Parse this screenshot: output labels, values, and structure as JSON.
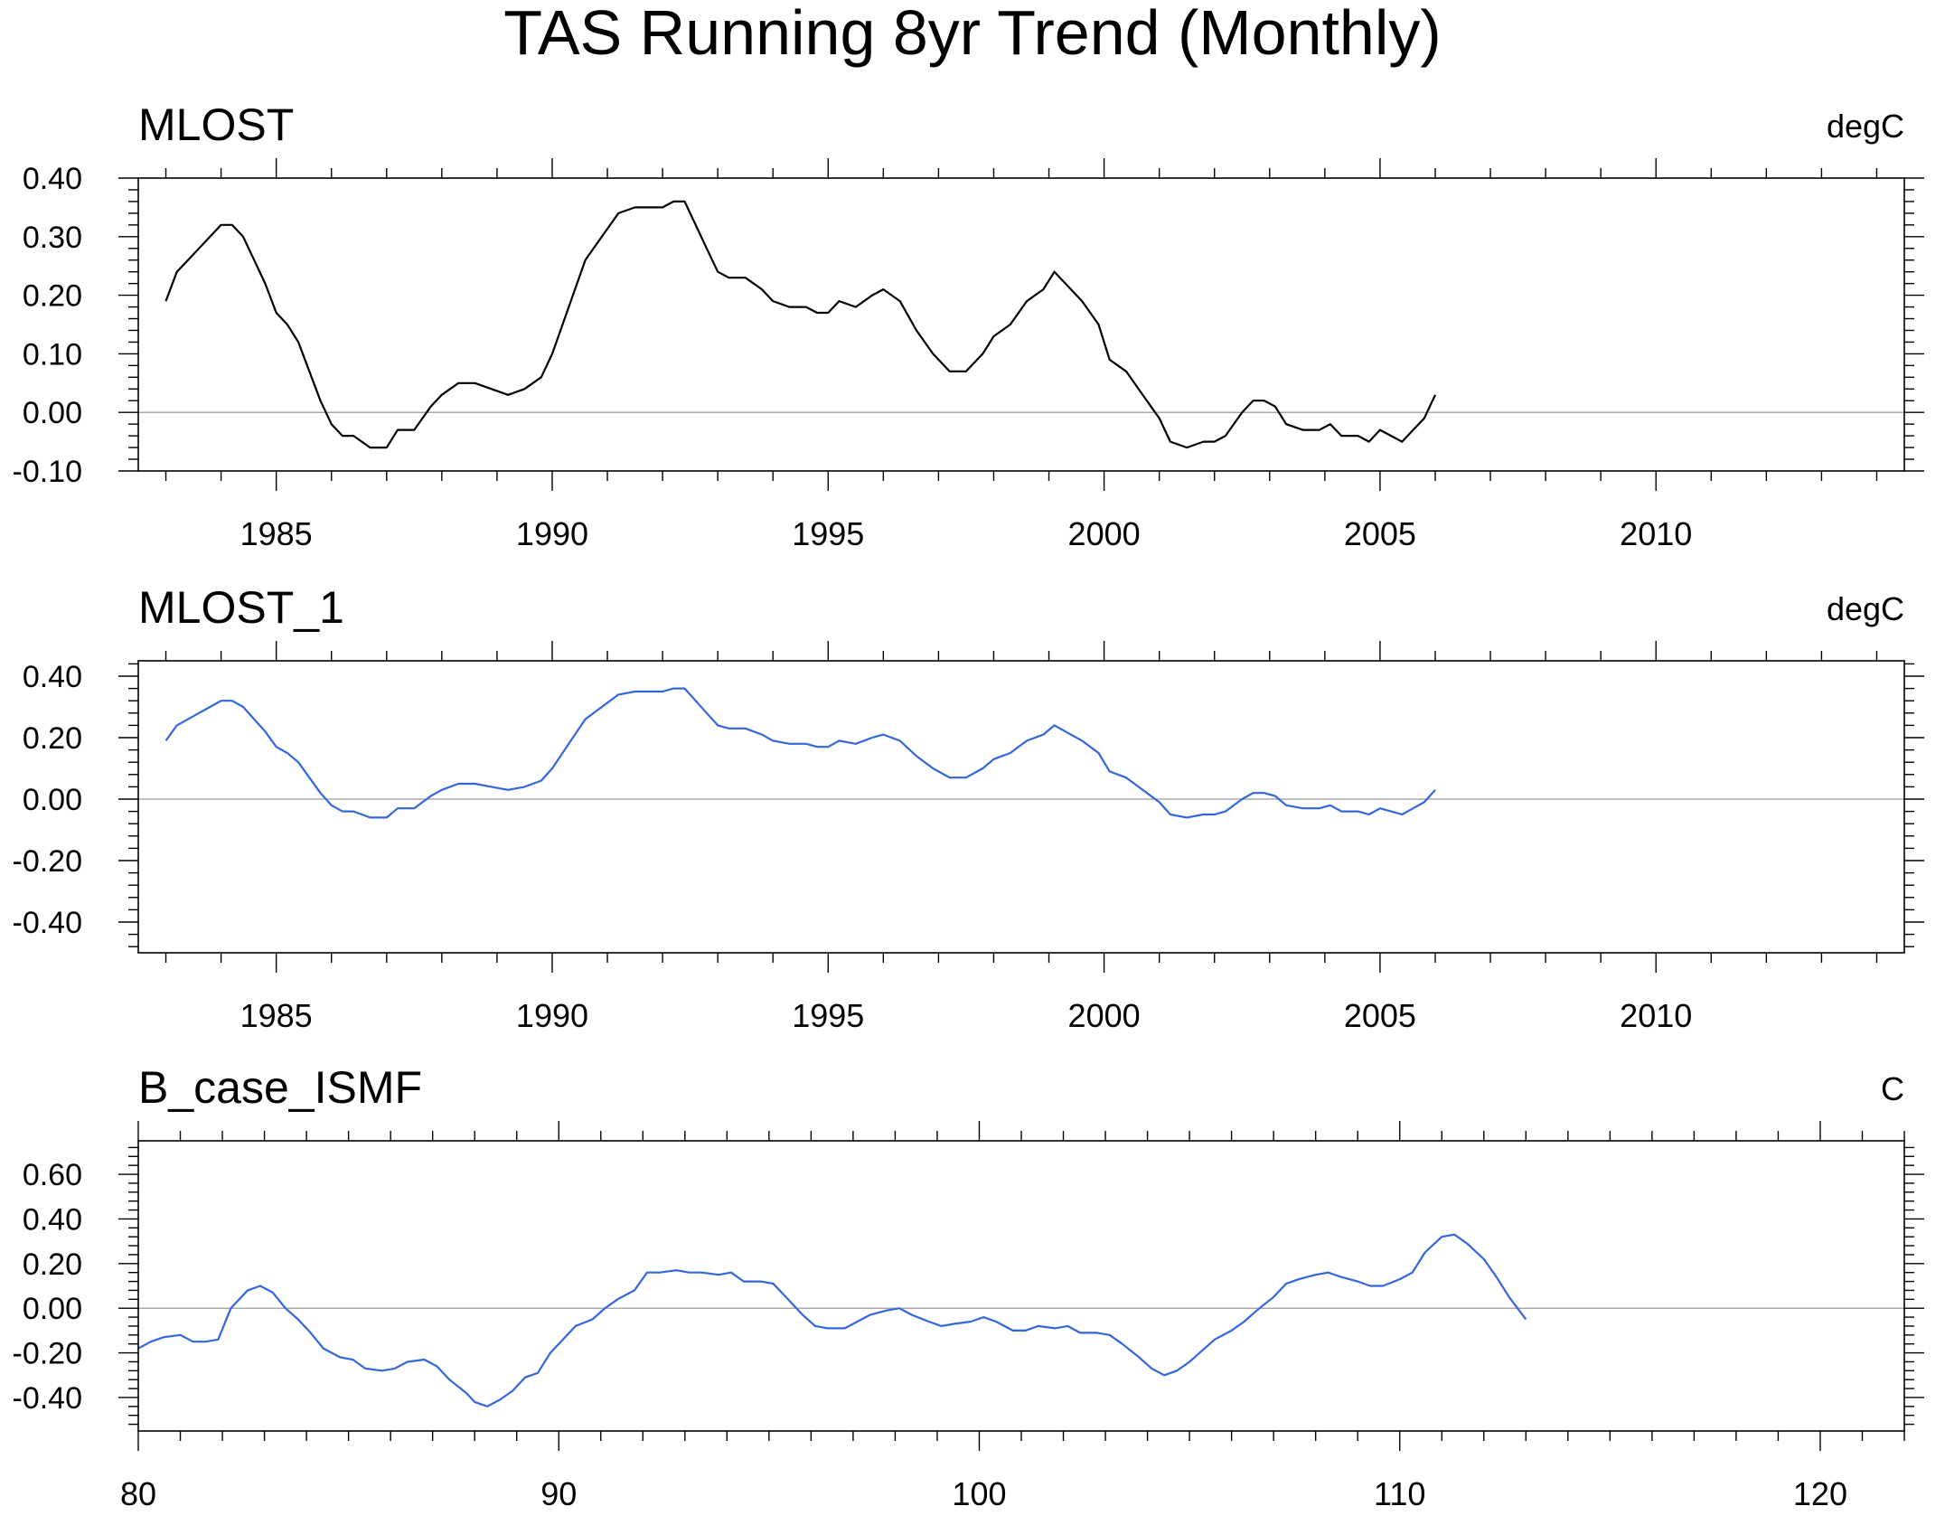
{
  "figure": {
    "title": "TAS Running 8yr Trend (Monthly)"
  },
  "colors": {
    "black_series": "#000000",
    "blue_series": "#3366dd",
    "zero_line": "#aaaaaa",
    "frame": "#000000"
  },
  "chart_data": [
    {
      "type": "line",
      "title": "MLOST",
      "units": "degC",
      "line_color": "#000000",
      "xlim": [
        1982.5,
        2014.5
      ],
      "ylim": [
        -0.1,
        0.4
      ],
      "x_ticks": [
        1985,
        1990,
        1995,
        2000,
        2005,
        2010
      ],
      "x_tick_labels": [
        "1985",
        "1990",
        "1995",
        "2000",
        "2005",
        "2010"
      ],
      "y_ticks": [
        -0.1,
        0.0,
        0.1,
        0.2,
        0.3,
        0.4
      ],
      "y_tick_labels": [
        "-0.10",
        "0.00",
        "0.10",
        "0.20",
        "0.30",
        "0.40"
      ],
      "zero_line": true,
      "series": [
        {
          "x": [
            1983.0,
            1983.2,
            1983.5,
            1983.8,
            1984.0,
            1984.2,
            1984.4,
            1984.6,
            1984.8,
            1985.0,
            1985.2,
            1985.4,
            1985.6,
            1985.8,
            1986.0,
            1986.2,
            1986.4,
            1986.7,
            1987.0,
            1987.2,
            1987.5,
            1987.8,
            1988.0,
            1988.3,
            1988.6,
            1988.9,
            1989.2,
            1989.5,
            1989.8,
            1990.0,
            1990.3,
            1990.6,
            1990.9,
            1991.2,
            1991.5,
            1991.8,
            1992.0,
            1992.2,
            1992.4,
            1992.6,
            1992.8,
            1993.0,
            1993.2,
            1993.5,
            1993.8,
            1994.0,
            1994.3,
            1994.6,
            1994.8,
            1995.0,
            1995.2,
            1995.5,
            1995.8,
            1996.0,
            1996.3,
            1996.6,
            1996.9,
            1997.2,
            1997.5,
            1997.8,
            1998.0,
            1998.3,
            1998.6,
            1998.9,
            1999.1,
            1999.3,
            1999.6,
            1999.9,
            2000.1,
            2000.4,
            2000.7,
            2001.0,
            2001.2,
            2001.5,
            2001.8,
            2002.0,
            2002.2,
            2002.5,
            2002.7,
            2002.9,
            2003.1,
            2003.3,
            2003.6,
            2003.9,
            2004.1,
            2004.3,
            2004.6,
            2004.8,
            2005.0,
            2005.2,
            2005.4,
            2005.6,
            2005.8,
            2006.0
          ],
          "y": [
            0.19,
            0.24,
            0.27,
            0.3,
            0.32,
            0.32,
            0.3,
            0.26,
            0.22,
            0.17,
            0.15,
            0.12,
            0.07,
            0.02,
            -0.02,
            -0.04,
            -0.04,
            -0.06,
            -0.06,
            -0.03,
            -0.03,
            0.01,
            0.03,
            0.05,
            0.05,
            0.04,
            0.03,
            0.04,
            0.06,
            0.1,
            0.18,
            0.26,
            0.3,
            0.34,
            0.35,
            0.35,
            0.35,
            0.36,
            0.36,
            0.32,
            0.28,
            0.24,
            0.23,
            0.23,
            0.21,
            0.19,
            0.18,
            0.18,
            0.17,
            0.17,
            0.19,
            0.18,
            0.2,
            0.21,
            0.19,
            0.14,
            0.1,
            0.07,
            0.07,
            0.1,
            0.13,
            0.15,
            0.19,
            0.21,
            0.24,
            0.22,
            0.19,
            0.15,
            0.09,
            0.07,
            0.03,
            -0.01,
            -0.05,
            -0.06,
            -0.05,
            -0.05,
            -0.04,
            0.0,
            0.02,
            0.02,
            0.01,
            -0.02,
            -0.03,
            -0.03,
            -0.02,
            -0.04,
            -0.04,
            -0.05,
            -0.03,
            -0.04,
            -0.05,
            -0.03,
            -0.01,
            0.03
          ]
        }
      ]
    },
    {
      "type": "line",
      "title": "MLOST_1",
      "units": "degC",
      "line_color": "#3366dd",
      "xlim": [
        1982.5,
        2014.5
      ],
      "ylim": [
        -0.5,
        0.45
      ],
      "x_ticks": [
        1985,
        1990,
        1995,
        2000,
        2005,
        2010
      ],
      "x_tick_labels": [
        "1985",
        "1990",
        "1995",
        "2000",
        "2005",
        "2010"
      ],
      "y_ticks": [
        -0.4,
        -0.2,
        0.0,
        0.2,
        0.4
      ],
      "y_tick_labels": [
        "-0.40",
        "-0.20",
        "0.00",
        "0.20",
        "0.40"
      ],
      "zero_line": true,
      "series": [
        {
          "x": [
            1983.0,
            1983.2,
            1983.5,
            1983.8,
            1984.0,
            1984.2,
            1984.4,
            1984.6,
            1984.8,
            1985.0,
            1985.2,
            1985.4,
            1985.6,
            1985.8,
            1986.0,
            1986.2,
            1986.4,
            1986.7,
            1987.0,
            1987.2,
            1987.5,
            1987.8,
            1988.0,
            1988.3,
            1988.6,
            1988.9,
            1989.2,
            1989.5,
            1989.8,
            1990.0,
            1990.3,
            1990.6,
            1990.9,
            1991.2,
            1991.5,
            1991.8,
            1992.0,
            1992.2,
            1992.4,
            1992.6,
            1992.8,
            1993.0,
            1993.2,
            1993.5,
            1993.8,
            1994.0,
            1994.3,
            1994.6,
            1994.8,
            1995.0,
            1995.2,
            1995.5,
            1995.8,
            1996.0,
            1996.3,
            1996.6,
            1996.9,
            1997.2,
            1997.5,
            1997.8,
            1998.0,
            1998.3,
            1998.6,
            1998.9,
            1999.1,
            1999.3,
            1999.6,
            1999.9,
            2000.1,
            2000.4,
            2000.7,
            2001.0,
            2001.2,
            2001.5,
            2001.8,
            2002.0,
            2002.2,
            2002.5,
            2002.7,
            2002.9,
            2003.1,
            2003.3,
            2003.6,
            2003.9,
            2004.1,
            2004.3,
            2004.6,
            2004.8,
            2005.0,
            2005.2,
            2005.4,
            2005.6,
            2005.8,
            2006.0
          ],
          "y": [
            0.19,
            0.24,
            0.27,
            0.3,
            0.32,
            0.32,
            0.3,
            0.26,
            0.22,
            0.17,
            0.15,
            0.12,
            0.07,
            0.02,
            -0.02,
            -0.04,
            -0.04,
            -0.06,
            -0.06,
            -0.03,
            -0.03,
            0.01,
            0.03,
            0.05,
            0.05,
            0.04,
            0.03,
            0.04,
            0.06,
            0.1,
            0.18,
            0.26,
            0.3,
            0.34,
            0.35,
            0.35,
            0.35,
            0.36,
            0.36,
            0.32,
            0.28,
            0.24,
            0.23,
            0.23,
            0.21,
            0.19,
            0.18,
            0.18,
            0.17,
            0.17,
            0.19,
            0.18,
            0.2,
            0.21,
            0.19,
            0.14,
            0.1,
            0.07,
            0.07,
            0.1,
            0.13,
            0.15,
            0.19,
            0.21,
            0.24,
            0.22,
            0.19,
            0.15,
            0.09,
            0.07,
            0.03,
            -0.01,
            -0.05,
            -0.06,
            -0.05,
            -0.05,
            -0.04,
            0.0,
            0.02,
            0.02,
            0.01,
            -0.02,
            -0.03,
            -0.03,
            -0.02,
            -0.04,
            -0.04,
            -0.05,
            -0.03,
            -0.04,
            -0.05,
            -0.03,
            -0.01,
            0.03
          ]
        }
      ]
    },
    {
      "type": "line",
      "title": "B_case_ISMF",
      "units": "C",
      "line_color": "#3366dd",
      "xlim": [
        80,
        122
      ],
      "ylim": [
        -0.55,
        0.75
      ],
      "x_ticks": [
        80,
        90,
        100,
        110,
        120
      ],
      "x_tick_labels": [
        "80",
        "90",
        "100",
        "110",
        "120"
      ],
      "y_ticks": [
        -0.4,
        -0.2,
        0.0,
        0.2,
        0.4,
        0.6
      ],
      "y_tick_labels": [
        "-0.40",
        "-0.20",
        "0.00",
        "0.20",
        "0.40",
        "0.60"
      ],
      "zero_line": true,
      "series": [
        {
          "x": [
            80.0,
            80.3,
            80.6,
            81.0,
            81.3,
            81.6,
            81.9,
            82.2,
            82.6,
            82.9,
            83.2,
            83.5,
            83.8,
            84.1,
            84.4,
            84.8,
            85.1,
            85.4,
            85.8,
            86.1,
            86.4,
            86.8,
            87.1,
            87.4,
            87.8,
            88.0,
            88.3,
            88.6,
            88.9,
            89.2,
            89.5,
            89.8,
            90.1,
            90.4,
            90.8,
            91.1,
            91.4,
            91.8,
            92.1,
            92.4,
            92.8,
            93.1,
            93.4,
            93.8,
            94.1,
            94.4,
            94.8,
            95.1,
            95.4,
            95.8,
            96.1,
            96.4,
            96.8,
            97.1,
            97.4,
            97.8,
            98.1,
            98.4,
            98.8,
            99.1,
            99.4,
            99.8,
            100.1,
            100.4,
            100.8,
            101.1,
            101.4,
            101.8,
            102.1,
            102.4,
            102.8,
            103.1,
            103.4,
            103.8,
            104.1,
            104.4,
            104.7,
            105.0,
            105.3,
            105.6,
            106.0,
            106.3,
            106.6,
            107.0,
            107.3,
            107.6,
            108.0,
            108.3,
            108.6,
            109.0,
            109.3,
            109.6,
            110.0,
            110.3,
            110.6,
            111.0,
            111.3,
            111.6,
            112.0,
            112.3,
            112.6,
            113.0
          ],
          "y": [
            -0.18,
            -0.15,
            -0.13,
            -0.12,
            -0.15,
            -0.15,
            -0.14,
            0.0,
            0.08,
            0.1,
            0.07,
            0.0,
            -0.05,
            -0.11,
            -0.18,
            -0.22,
            -0.23,
            -0.27,
            -0.28,
            -0.27,
            -0.24,
            -0.23,
            -0.26,
            -0.32,
            -0.38,
            -0.42,
            -0.44,
            -0.41,
            -0.37,
            -0.31,
            -0.29,
            -0.2,
            -0.14,
            -0.08,
            -0.05,
            0.0,
            0.04,
            0.08,
            0.16,
            0.16,
            0.17,
            0.16,
            0.16,
            0.15,
            0.16,
            0.12,
            0.12,
            0.11,
            0.05,
            -0.03,
            -0.08,
            -0.09,
            -0.09,
            -0.06,
            -0.03,
            -0.01,
            0.0,
            -0.03,
            -0.06,
            -0.08,
            -0.07,
            -0.06,
            -0.04,
            -0.06,
            -0.1,
            -0.1,
            -0.08,
            -0.09,
            -0.08,
            -0.11,
            -0.11,
            -0.12,
            -0.16,
            -0.22,
            -0.27,
            -0.3,
            -0.28,
            -0.24,
            -0.19,
            -0.14,
            -0.1,
            -0.06,
            -0.01,
            0.05,
            0.11,
            0.13,
            0.15,
            0.16,
            0.14,
            0.12,
            0.1,
            0.1,
            0.13,
            0.16,
            0.25,
            0.32,
            0.33,
            0.29,
            0.22,
            0.14,
            0.05,
            -0.05
          ]
        }
      ]
    }
  ]
}
